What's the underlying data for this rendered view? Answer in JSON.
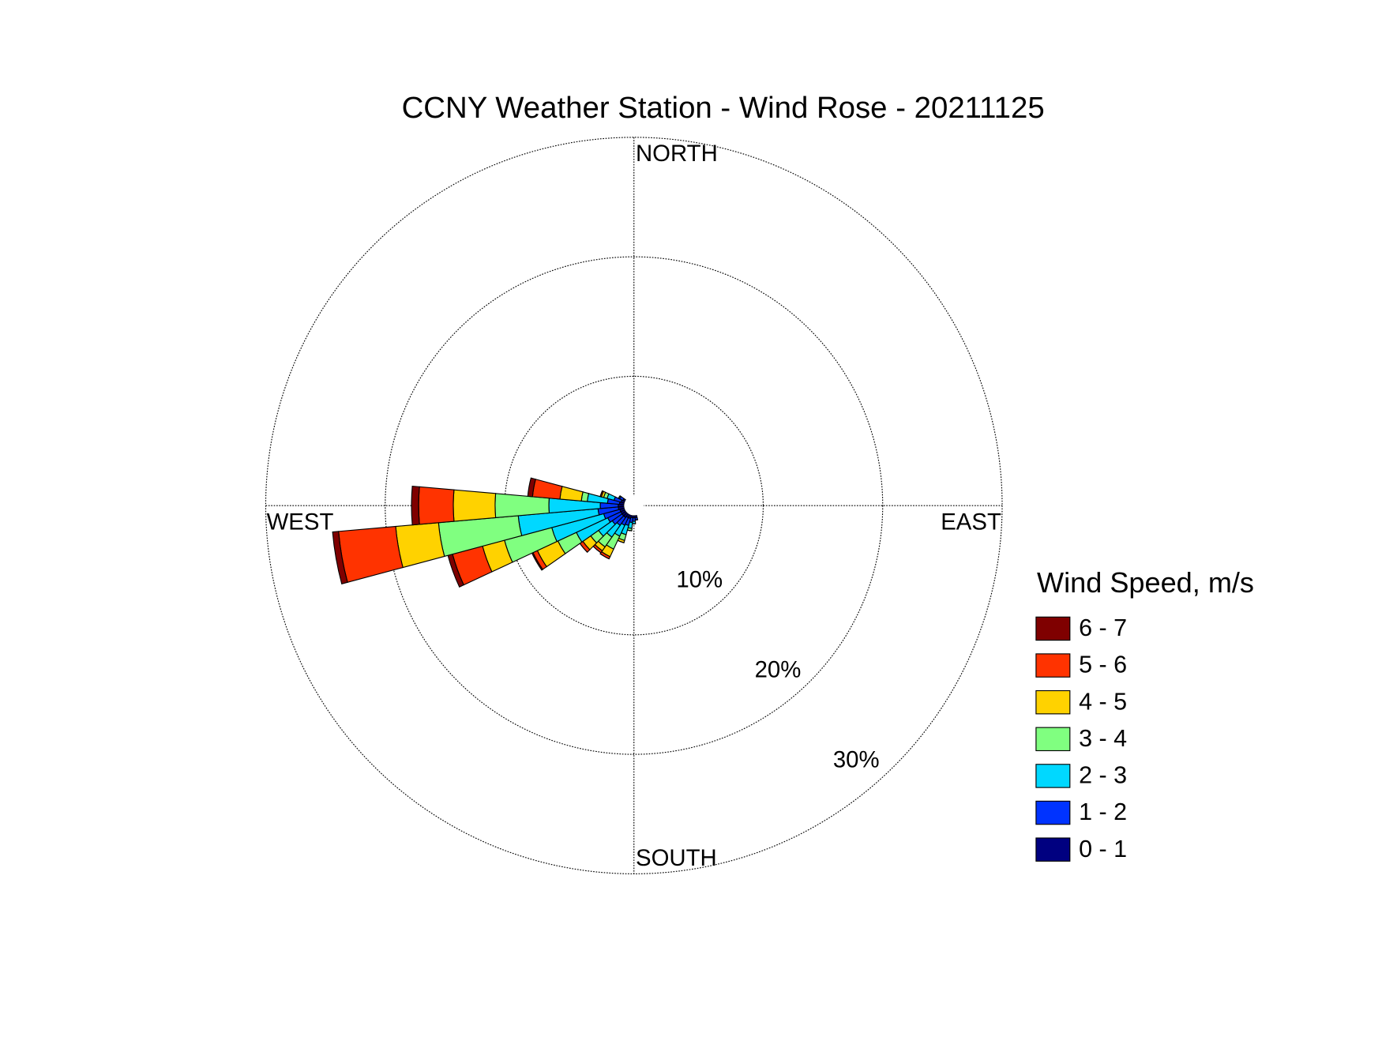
{
  "chart_data": {
    "type": "windrose",
    "title": "CCNY Weather Station - Wind Rose - 20211125",
    "direction_labels": [
      "NORTH",
      "EAST",
      "SOUTH",
      "WEST"
    ],
    "legend_title": "Wind Speed, m/s",
    "x": [
      170,
      180,
      190,
      200,
      210,
      220,
      230,
      240,
      250,
      260,
      270,
      280,
      290,
      300
    ],
    "series": [
      {
        "name": "0 - 1",
        "color": "#000080",
        "values": [
          0.2,
          0.2,
          0.2,
          0.3,
          0.3,
          0.4,
          0.4,
          0.4,
          0.4,
          0.5,
          0.5,
          0.4,
          0.3,
          0.2
        ]
      },
      {
        "name": "1 - 2",
        "color": "#0033ff",
        "values": [
          0.2,
          0.3,
          0.4,
          0.6,
          0.7,
          0.8,
          1.0,
          1.2,
          1.4,
          1.7,
          1.5,
          1.0,
          0.6,
          0.3
        ]
      },
      {
        "name": "2 - 3",
        "color": "#00d8ff",
        "values": [
          0,
          0.2,
          0.5,
          0.8,
          1.0,
          1.2,
          1.4,
          2.9,
          4.5,
          6.7,
          4.3,
          1.7,
          0.6,
          0.1
        ]
      },
      {
        "name": "3 - 4",
        "color": "#80ff80",
        "values": [
          0,
          0,
          0.2,
          0.5,
          1.2,
          1.0,
          0.8,
          1.7,
          4.1,
          6.7,
          4.5,
          0.5,
          0.3,
          0
        ]
      },
      {
        "name": "4 - 5",
        "color": "#ffd200",
        "values": [
          0,
          0,
          0,
          0.2,
          0.7,
          0.4,
          0.8,
          1.9,
          1.9,
          3.6,
          3.5,
          1.8,
          0.2,
          0
        ]
      },
      {
        "name": "5 - 6",
        "color": "#ff3300",
        "values": [
          0,
          0,
          0,
          0,
          0.2,
          0.2,
          0.3,
          0.4,
          2.6,
          4.8,
          2.9,
          2.3,
          0.1,
          0
        ]
      },
      {
        "name": "6 - 7",
        "color": "#7f0000",
        "values": [
          0,
          0,
          0,
          0,
          0,
          0,
          0,
          0.1,
          0.4,
          0.5,
          0.6,
          0.4,
          0,
          0
        ]
      }
    ],
    "rlim": [
      0,
      30
    ],
    "rticks": [
      {
        "value": 10,
        "label": "10%"
      },
      {
        "value": 20,
        "label": "20%"
      },
      {
        "value": 30,
        "label": "30%"
      }
    ],
    "grid": true
  }
}
